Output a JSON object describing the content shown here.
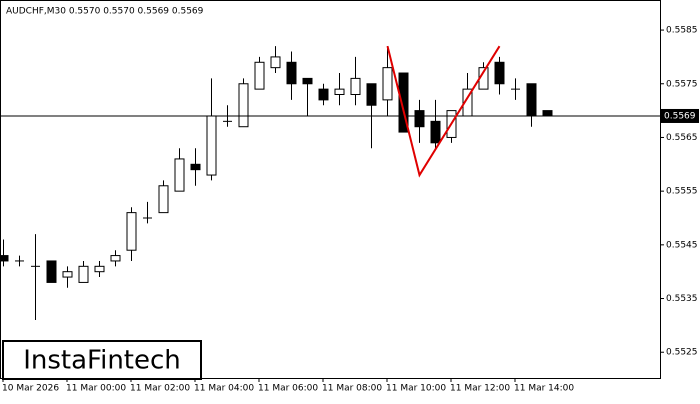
{
  "chart_data": {
    "type": "candlestick",
    "header": "AUDCHF,M30  0.5570 0.5570 0.5569 0.5569",
    "watermark": "InstaFintech",
    "categories": [
      "10 Mar 2026",
      null,
      null,
      null,
      "11 Mar 00:00",
      null,
      null,
      null,
      "11 Mar 02:00",
      null,
      null,
      null,
      "11 Mar 04:00",
      null,
      null,
      null,
      "11 Mar 06:00",
      null,
      null,
      null,
      "11 Mar 08:00",
      null,
      null,
      null,
      "11 Mar 10:00",
      null,
      null,
      null,
      "11 Mar 12:00",
      null,
      null,
      null,
      "11 Mar 14:00",
      null,
      null
    ],
    "open": [
      0.5543,
      0.5542,
      0.5541,
      0.5542,
      0.5539,
      0.5538,
      0.554,
      0.5542,
      0.5544,
      0.555,
      0.5551,
      0.5555,
      0.556,
      0.5558,
      0.5568,
      0.5567,
      0.5574,
      0.5578,
      0.5579,
      0.5576,
      0.5574,
      0.5573,
      0.5573,
      0.5575,
      0.5572,
      0.5577,
      0.557,
      0.5568,
      0.5565,
      0.5569,
      0.5574,
      0.5579,
      0.5574,
      0.5575,
      0.557
    ],
    "high": [
      0.5546,
      0.5543,
      0.5547,
      0.5542,
      0.5541,
      0.5542,
      0.5542,
      0.5544,
      0.5552,
      0.5553,
      0.5557,
      0.5563,
      0.5563,
      0.5576,
      0.5571,
      0.5576,
      0.558,
      0.5582,
      0.5581,
      0.5576,
      0.5575,
      0.5577,
      0.558,
      0.5575,
      0.5582,
      0.5577,
      0.5572,
      0.5572,
      0.557,
      0.5577,
      0.5579,
      0.558,
      0.5576,
      0.5575,
      0.557
    ],
    "low": [
      0.5541,
      0.5541,
      0.5531,
      0.5538,
      0.5537,
      0.5538,
      0.5539,
      0.5541,
      0.5542,
      0.5549,
      0.5551,
      0.5555,
      0.5556,
      0.5557,
      0.5567,
      0.5567,
      0.5574,
      0.5577,
      0.5572,
      0.5569,
      0.5571,
      0.5571,
      0.5571,
      0.5563,
      0.5569,
      0.5566,
      0.5564,
      0.5563,
      0.5564,
      0.5569,
      0.5574,
      0.5573,
      0.5572,
      0.5567,
      0.5569
    ],
    "close": [
      0.5542,
      0.5542,
      0.5541,
      0.5538,
      0.554,
      0.5541,
      0.5541,
      0.5543,
      0.5551,
      0.555,
      0.5556,
      0.5561,
      0.5559,
      0.5569,
      0.5568,
      0.5575,
      0.5579,
      0.558,
      0.5575,
      0.5575,
      0.5572,
      0.5574,
      0.5576,
      0.5571,
      0.5578,
      0.5566,
      0.5567,
      0.5564,
      0.557,
      0.5574,
      0.5578,
      0.5575,
      0.5574,
      0.5569,
      0.5569
    ],
    "ylim": [
      0.55202,
      0.55906
    ],
    "yticks": [
      0.5525,
      0.5535,
      0.5545,
      0.5555,
      0.5565,
      0.5575,
      0.5585
    ],
    "last_price": 0.5569,
    "pattern": {
      "color": "#e00000",
      "points": [
        {
          "index": 24,
          "value": 0.5582
        },
        {
          "index": 26,
          "value": 0.5558
        },
        {
          "index": 31,
          "value": 0.5582
        }
      ]
    }
  }
}
